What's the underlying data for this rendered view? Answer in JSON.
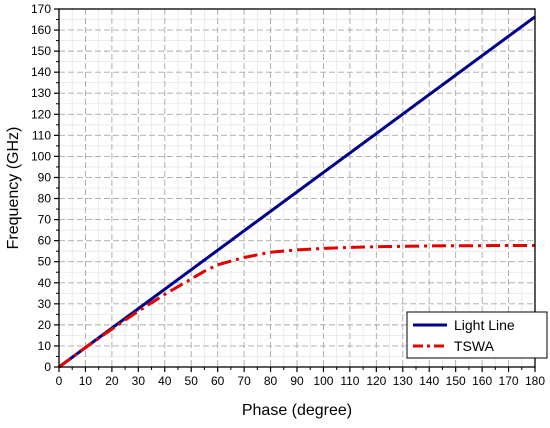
{
  "chart_data": {
    "type": "line",
    "title": "",
    "xlabel": "Phase (degree)",
    "ylabel": "Frequency (GHz)",
    "xlim": [
      0,
      180
    ],
    "ylim": [
      0,
      170
    ],
    "x_ticks": [
      0,
      10,
      20,
      30,
      40,
      50,
      60,
      70,
      80,
      90,
      100,
      110,
      120,
      130,
      140,
      150,
      160,
      170,
      180
    ],
    "y_ticks": [
      0,
      10,
      20,
      30,
      40,
      50,
      60,
      70,
      80,
      90,
      100,
      110,
      120,
      130,
      140,
      150,
      160,
      170
    ],
    "x_minor_step": 5,
    "y_minor_step": 5,
    "grid": true,
    "legend_position": "bottom-right",
    "series": [
      {
        "name": "Light Line",
        "color": "#00008B",
        "style": "solid",
        "x": [
          0,
          180
        ],
        "y": [
          0,
          166.3
        ]
      },
      {
        "name": "TSWA",
        "color": "#E50000",
        "style": "dash-dot",
        "x": [
          0,
          10,
          20,
          30,
          40,
          50,
          55,
          60,
          70,
          80,
          90,
          100,
          110,
          120,
          130,
          140,
          150,
          160,
          170,
          180
        ],
        "y": [
          0,
          9.2,
          18,
          26.5,
          34.5,
          41.8,
          45.5,
          48.5,
          52,
          54.5,
          55.6,
          56.3,
          56.8,
          57.1,
          57.3,
          57.5,
          57.6,
          57.6,
          57.7,
          57.7
        ]
      }
    ]
  }
}
